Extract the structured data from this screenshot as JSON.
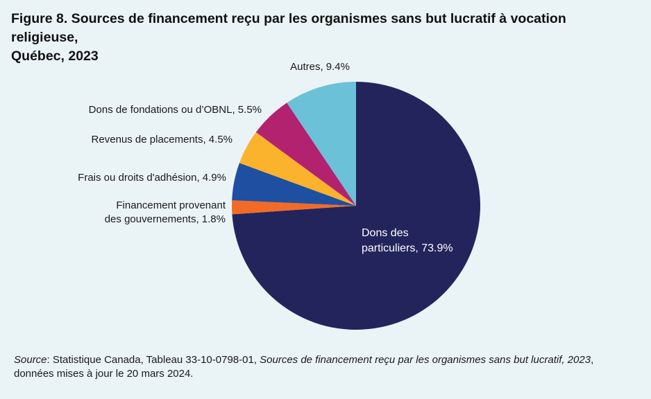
{
  "title_line1": "Figure 8. Sources de financement reçu par les organismes sans but lucratif à vocation religieuse,",
  "title_line2": "Québec, 2023",
  "source": {
    "label": "Source",
    "text1": ": Statistique Canada, Tableau 33-10-0798-01, ",
    "title_italic": "Sources de financement reçu par les organismes sans but lucratif, 2023",
    "text2": ",",
    "line2": "données mises à jour le 20 mars 2024."
  },
  "chart_data": {
    "type": "pie",
    "slices": [
      {
        "label": "Dons des particuliers",
        "value": 73.9,
        "color": "#24245c",
        "label_lines": [
          "Dons des",
          "particuliers, 73.9%"
        ]
      },
      {
        "label": "Financement provenant des gouvernements",
        "value": 1.8,
        "color": "#f26b26",
        "label_lines": [
          "Financement provenant",
          "des gouvernements, 1.8%"
        ]
      },
      {
        "label": "Frais ou droits d'adhésion",
        "value": 4.9,
        "color": "#1f4fa0",
        "label_lines": [
          "Frais ou droits d'adhésion, 4.9%"
        ]
      },
      {
        "label": "Revenus de placements",
        "value": 4.5,
        "color": "#fbb22c",
        "label_lines": [
          "Revenus de placements, 4.5%"
        ]
      },
      {
        "label": "Dons de fondations ou d'OBNL",
        "value": 5.5,
        "color": "#b3226f",
        "label_lines": [
          "Dons de fondations ou d’OBNL, 5.5%"
        ]
      },
      {
        "label": "Autres",
        "value": 9.4,
        "color": "#6bc1d8",
        "label_lines": [
          "Autres, 9.4%"
        ]
      }
    ]
  }
}
